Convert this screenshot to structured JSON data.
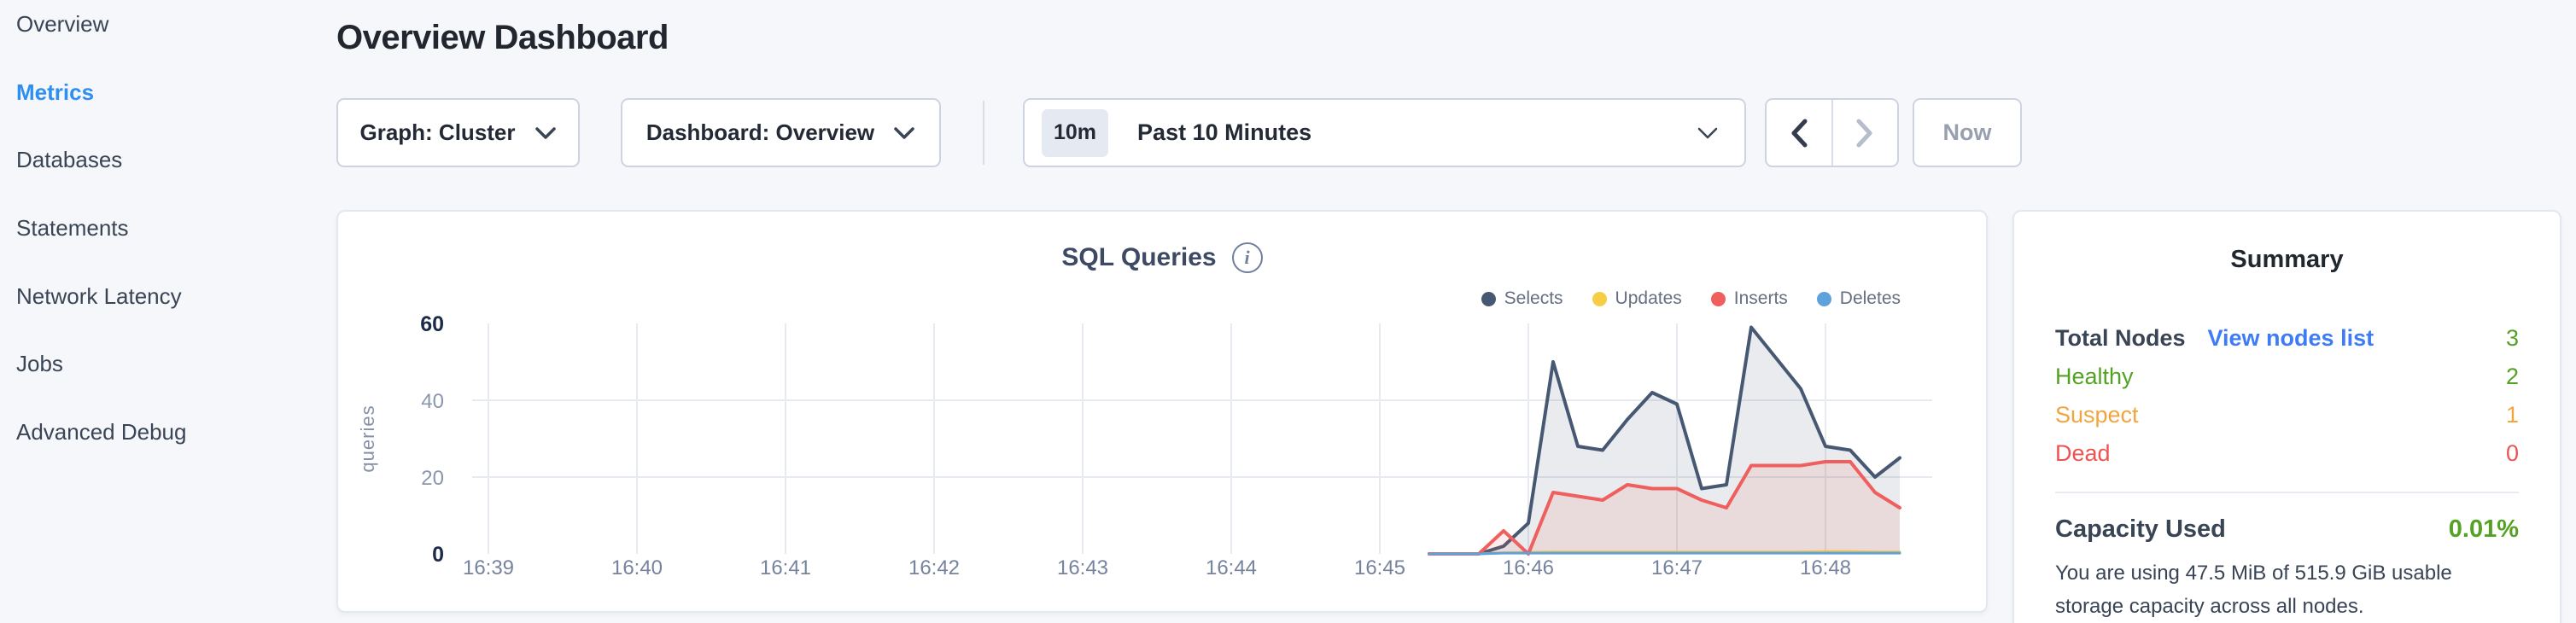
{
  "colors": {
    "page_bg": "#f5f7fa",
    "accent_blue": "#2d8ef4",
    "link_blue": "#3d7cf4",
    "green": "#54a223",
    "orange": "#f2a53d",
    "red": "#ee5351",
    "grid": "#e7eaf1",
    "dark_text": "#242a35",
    "slate_text": "#394455",
    "disabled_text": "#989fae"
  },
  "icons": {
    "info": "i",
    "chevron_down": "v-shape chevron",
    "chevron_left": "left angle bracket",
    "chevron_right": "right angle bracket"
  },
  "sidebar": {
    "items": [
      {
        "label": "Overview",
        "active": false
      },
      {
        "label": "Metrics",
        "active": true
      },
      {
        "label": "Databases",
        "active": false
      },
      {
        "label": "Statements",
        "active": false
      },
      {
        "label": "Network Latency",
        "active": false
      },
      {
        "label": "Jobs",
        "active": false
      },
      {
        "label": "Advanced Debug",
        "active": false
      }
    ]
  },
  "header": {
    "title": "Overview Dashboard"
  },
  "controls": {
    "graph_dropdown": "Graph: Cluster",
    "dashboard_dropdown": "Dashboard: Overview",
    "time_badge": "10m",
    "time_label": "Past 10 Minutes",
    "now_label": "Now"
  },
  "chart_data": {
    "type": "area",
    "title": "SQL Queries",
    "ylabel": "queries",
    "x_ticks": [
      "16:39",
      "16:40",
      "16:41",
      "16:42",
      "16:43",
      "16:44",
      "16:45",
      "16:46",
      "16:47",
      "16:48"
    ],
    "y_ticks": [
      0,
      20,
      40,
      60
    ],
    "ylim": [
      0,
      60
    ],
    "grid": true,
    "legend_position": "top-right",
    "x_axis_start": "16:39:00",
    "data_start_offset_seconds": 380,
    "sample_interval_seconds": 10,
    "series": [
      {
        "name": "Selects",
        "color": "#475872",
        "fill": "rgba(71,88,114,0.12)",
        "width": 4,
        "values": [
          0,
          0,
          0,
          2,
          8,
          50,
          28,
          27,
          35,
          42,
          39,
          17,
          18,
          59,
          51,
          43,
          28,
          27,
          20,
          25
        ]
      },
      {
        "name": "Updates",
        "color": "#f6ce45",
        "fill": "none",
        "width": 3,
        "values": [
          0,
          0,
          0,
          0.3,
          0.4,
          0.5,
          0.5,
          0.5,
          0.5,
          0.5,
          0.5,
          0.5,
          0.5,
          0.5,
          0.5,
          0.5,
          0.6,
          0.6,
          0.5,
          0.5
        ]
      },
      {
        "name": "Inserts",
        "color": "#ee5f5e",
        "fill": "rgba(238,95,94,0.12)",
        "width": 4,
        "values": [
          0,
          0,
          0,
          6,
          0,
          16,
          15,
          14,
          18,
          17,
          17,
          14,
          12,
          23,
          23,
          23,
          24,
          24,
          16,
          12
        ]
      },
      {
        "name": "Deletes",
        "color": "#5ea2dc",
        "fill": "none",
        "width": 3,
        "values": [
          0,
          0,
          0,
          0.2,
          0.2,
          0.2,
          0.2,
          0.2,
          0.2,
          0.2,
          0.2,
          0.2,
          0.2,
          0.2,
          0.2,
          0.2,
          0.2,
          0.2,
          0.2,
          0.2
        ]
      }
    ]
  },
  "summary": {
    "title": "Summary",
    "node_rows": [
      {
        "label": "Total Nodes",
        "bold": true,
        "link": "View nodes list",
        "value": "3",
        "label_color": "#394455",
        "value_color": "#54a223"
      },
      {
        "label": "Healthy",
        "bold": false,
        "value": "2",
        "label_color": "#54a223",
        "value_color": "#54a223"
      },
      {
        "label": "Suspect",
        "bold": false,
        "value": "1",
        "label_color": "#f2a53d",
        "value_color": "#f2a53d"
      },
      {
        "label": "Dead",
        "bold": false,
        "value": "0",
        "label_color": "#ee5351",
        "value_color": "#ee5351"
      }
    ],
    "capacity": {
      "label": "Capacity Used",
      "value": "0.01%",
      "value_color": "#54a223",
      "description": "You are using 47.5 MiB of 515.9 GiB usable storage capacity across all nodes."
    }
  }
}
